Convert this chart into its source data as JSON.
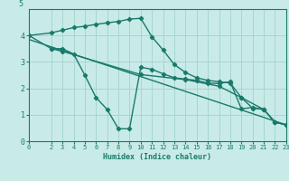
{
  "xlabel": "Humidex (Indice chaleur)",
  "bg_color": "#c8ebe8",
  "grid_color": "#a8d5d0",
  "line_color": "#1a7a6a",
  "xlim": [
    0,
    23
  ],
  "ylim": [
    0,
    5
  ],
  "xticks": [
    0,
    2,
    3,
    4,
    5,
    6,
    7,
    8,
    9,
    10,
    11,
    12,
    13,
    14,
    15,
    16,
    17,
    18,
    19,
    20,
    21,
    22,
    23
  ],
  "yticks": [
    0,
    1,
    2,
    3,
    4
  ],
  "top_label": "5",
  "line1_x": [
    0,
    2,
    3,
    4,
    5,
    6,
    7,
    8,
    9,
    10,
    11,
    12,
    13,
    14,
    15,
    16,
    17,
    18,
    19,
    20,
    21,
    22,
    23
  ],
  "line1_y": [
    4.0,
    4.1,
    4.2,
    4.3,
    4.35,
    4.42,
    4.48,
    4.53,
    4.62,
    4.65,
    3.95,
    3.45,
    2.9,
    2.6,
    2.4,
    2.3,
    2.25,
    2.2,
    1.65,
    1.25,
    1.2,
    0.72,
    0.62
  ],
  "line2_x": [
    2,
    3,
    4,
    5,
    6,
    7,
    8,
    9,
    10,
    11,
    12,
    13,
    14,
    15,
    16,
    17,
    18,
    19,
    20,
    21,
    22,
    23
  ],
  "line2_y": [
    3.5,
    3.5,
    3.3,
    2.5,
    1.65,
    1.2,
    0.47,
    0.47,
    2.8,
    2.72,
    2.55,
    2.4,
    2.35,
    2.3,
    2.2,
    2.18,
    2.25,
    1.22,
    1.28,
    1.2,
    0.72,
    0.62
  ],
  "line3_x": [
    0,
    2,
    3,
    10,
    14,
    17,
    19,
    21,
    22,
    23
  ],
  "line3_y": [
    4.0,
    3.5,
    3.4,
    2.52,
    2.33,
    2.08,
    1.65,
    1.2,
    0.72,
    0.62
  ],
  "line4_x": [
    0,
    23
  ],
  "line4_y": [
    3.85,
    0.62
  ]
}
